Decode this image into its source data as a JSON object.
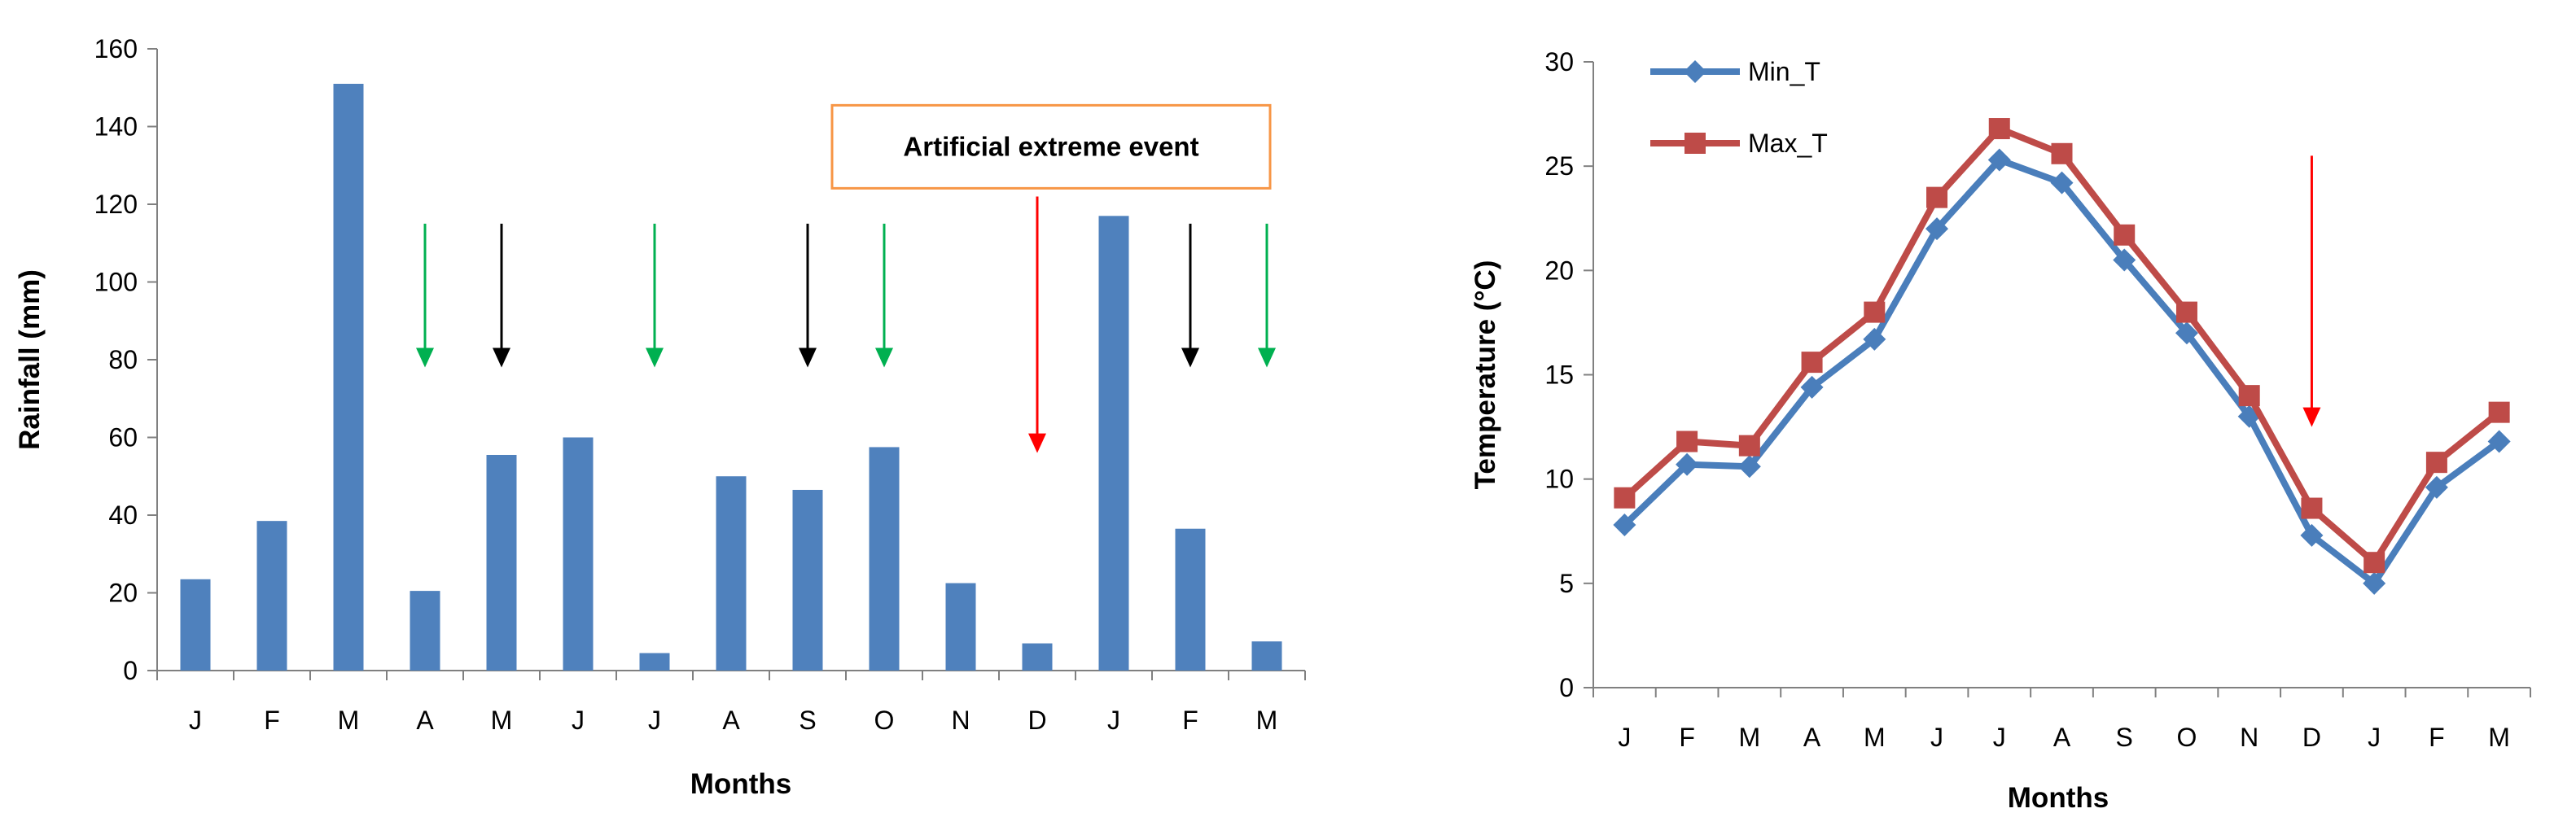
{
  "colors": {
    "bar": "#4F81BD",
    "min_line": "#4A7EBB",
    "max_line": "#BE4B48",
    "green_arrow": "#00B050",
    "black_arrow": "#000000",
    "red_arrow": "#FF0000",
    "annotation_border": "#F79646",
    "axis": "#808080"
  },
  "chart_data": [
    {
      "type": "bar",
      "title": "",
      "xlabel": "Months",
      "ylabel": "Rainfall  (mm)",
      "ylim": [
        0,
        160
      ],
      "yticks": [
        0,
        20,
        40,
        60,
        80,
        100,
        120,
        140,
        160
      ],
      "grid": false,
      "categories": [
        "J",
        "F",
        "M",
        "A",
        "M",
        "J",
        "J",
        "A",
        "S",
        "O",
        "N",
        "D",
        "J",
        "F",
        "M"
      ],
      "values": [
        23.5,
        38.5,
        151,
        20.5,
        55.5,
        60,
        4.5,
        50,
        46.5,
        57.5,
        22.5,
        7,
        117,
        36.5,
        7.5
      ],
      "annotations": [
        {
          "type": "arrow",
          "color": "green",
          "category_index": 3,
          "y_from": 115,
          "y_to": 78
        },
        {
          "type": "arrow",
          "color": "black",
          "category_index": 4,
          "y_from": 115,
          "y_to": 78
        },
        {
          "type": "arrow",
          "color": "green",
          "category_index": 6,
          "y_from": 115,
          "y_to": 78
        },
        {
          "type": "arrow",
          "color": "black",
          "category_index": 8,
          "y_from": 115,
          "y_to": 78
        },
        {
          "type": "arrow",
          "color": "green",
          "category_index": 9,
          "y_from": 115,
          "y_to": 78
        },
        {
          "type": "arrow",
          "color": "red",
          "category_index": 11,
          "y_from": 122,
          "y_to": 56
        },
        {
          "type": "arrow",
          "color": "black",
          "category_index": 13,
          "y_from": 115,
          "y_to": 78
        },
        {
          "type": "arrow",
          "color": "green",
          "category_index": 14,
          "y_from": 115,
          "y_to": 78
        },
        {
          "type": "text_box",
          "text": "Artificial extreme event",
          "category_index": 11,
          "y": 135
        }
      ]
    },
    {
      "type": "line",
      "title": "",
      "xlabel": "Months",
      "ylabel": "Temperature (°C)",
      "ylim": [
        0,
        30
      ],
      "yticks": [
        0,
        5,
        10,
        15,
        20,
        25,
        30
      ],
      "grid": false,
      "legend_position": "top-left",
      "categories": [
        "J",
        "F",
        "M",
        "A",
        "M",
        "J",
        "J",
        "A",
        "S",
        "O",
        "N",
        "D",
        "J",
        "F",
        "M"
      ],
      "series": [
        {
          "name": "Min_T",
          "marker": "diamond",
          "values": [
            7.8,
            10.7,
            10.6,
            14.4,
            16.7,
            22,
            25.3,
            24.2,
            20.5,
            17,
            13,
            7.3,
            5,
            9.6,
            11.8
          ]
        },
        {
          "name": "Max_T",
          "marker": "square",
          "values": [
            9.1,
            11.8,
            11.6,
            15.6,
            18,
            23.5,
            26.8,
            25.6,
            21.7,
            18,
            14,
            8.6,
            6,
            10.8,
            13.2
          ]
        }
      ],
      "annotations": [
        {
          "type": "arrow",
          "color": "red",
          "category_index": 11,
          "y_from": 25.5,
          "y_to": 12.5
        }
      ]
    }
  ]
}
